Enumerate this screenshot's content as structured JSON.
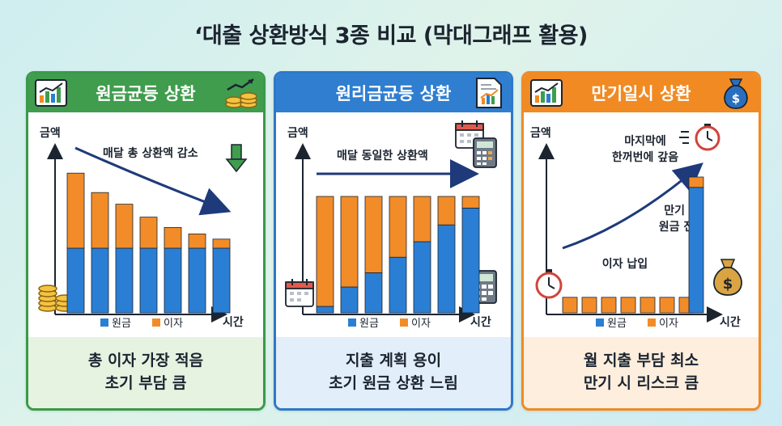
{
  "title": "‘대출 상환방식 3종 비교 (막대그래프 활용)",
  "colors": {
    "principal": "#2a7fd4",
    "interest": "#f28c28",
    "green": "#3f9d4d",
    "blue": "#2f7ed0",
    "orange": "#f18a22"
  },
  "legend": {
    "principal": "원금",
    "interest": "이자"
  },
  "axis": {
    "y": "금액",
    "x": "시간"
  },
  "panels": [
    {
      "title": "원금균등 상환",
      "annotation": "매달 총 상환액 감소",
      "icons": [
        "bar-chart-icon",
        "coins-icon",
        "down-arrow-icon"
      ],
      "summary": [
        "총 이자 가장 적음",
        "초기 부담 큼"
      ]
    },
    {
      "title": "원리금균등 상환",
      "annotation": "매달 동일한 상환액",
      "icons": [
        "document-chart-icon",
        "calendar-icon",
        "calculator-icon"
      ],
      "summary": [
        "지출 계획 용이",
        "초기 원금 상환 느림"
      ]
    },
    {
      "title": "만기일시 상환",
      "annotation_top": [
        "마지막에",
        "한꺼번에 갚음"
      ],
      "annotation_mid": [
        "만기 시",
        "원금 전액"
      ],
      "annotation_low": "이자 납입",
      "icons": [
        "bar-chart-icon",
        "money-bag-icon",
        "stopwatch-icon"
      ],
      "summary": [
        "월 지출 부담 최소",
        "만기 시 리스크 큼"
      ]
    }
  ],
  "chart_data": [
    {
      "type": "bar",
      "stacked": true,
      "categories": [
        "1",
        "2",
        "3",
        "4",
        "5",
        "6",
        "7"
      ],
      "series": [
        {
          "name": "원금",
          "values": [
            50,
            50,
            50,
            50,
            50,
            50,
            50
          ]
        },
        {
          "name": "이자",
          "values": [
            58,
            43,
            34,
            24,
            16,
            11,
            7
          ]
        }
      ],
      "xlabel": "시간",
      "ylabel": "금액"
    },
    {
      "type": "bar",
      "stacked": true,
      "categories": [
        "1",
        "2",
        "3",
        "4",
        "5",
        "6",
        "7"
      ],
      "series": [
        {
          "name": "원금",
          "values": [
            5,
            20,
            31,
            43,
            55,
            68,
            81
          ]
        },
        {
          "name": "이자",
          "values": [
            85,
            70,
            59,
            47,
            35,
            22,
            9
          ]
        }
      ],
      "xlabel": "시간",
      "ylabel": "금액"
    },
    {
      "type": "bar",
      "stacked": true,
      "categories": [
        "1",
        "2",
        "3",
        "4",
        "5",
        "6",
        "7",
        "8"
      ],
      "series": [
        {
          "name": "원금",
          "values": [
            0,
            0,
            0,
            0,
            0,
            0,
            0,
            97
          ]
        },
        {
          "name": "이자",
          "values": [
            12,
            12,
            12,
            12,
            12,
            12,
            12,
            8
          ]
        }
      ],
      "xlabel": "시간",
      "ylabel": "금액"
    }
  ]
}
